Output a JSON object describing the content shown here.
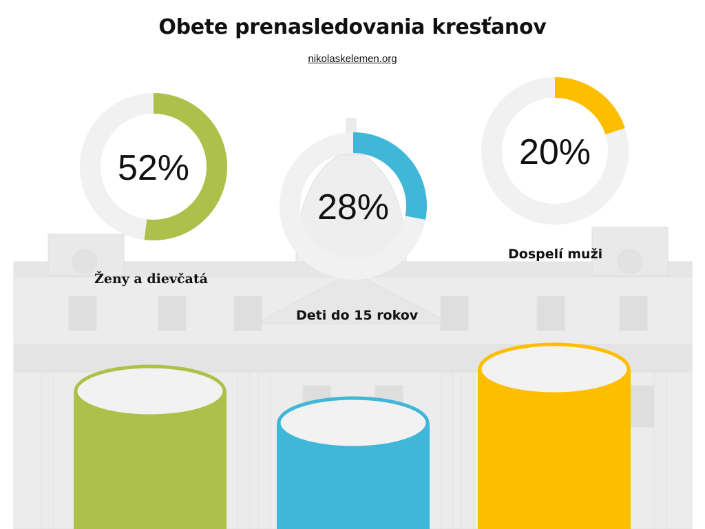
{
  "title": "Obete prenasledovania kresťanov",
  "subtitle": "nikolaskelemen.org",
  "colors": {
    "women": "#adc14a",
    "children": "#40b6d9",
    "men": "#fdbe00",
    "track": "#f1f1f1"
  },
  "chart_data": {
    "type": "pie",
    "categories": [
      "Ženy a dievčatá",
      "Deti do 15 rokov",
      "Dospelí muži"
    ],
    "values": [
      52,
      28,
      20
    ],
    "unit": "%",
    "value_labels": [
      "52%",
      "28%",
      "20%"
    ]
  }
}
